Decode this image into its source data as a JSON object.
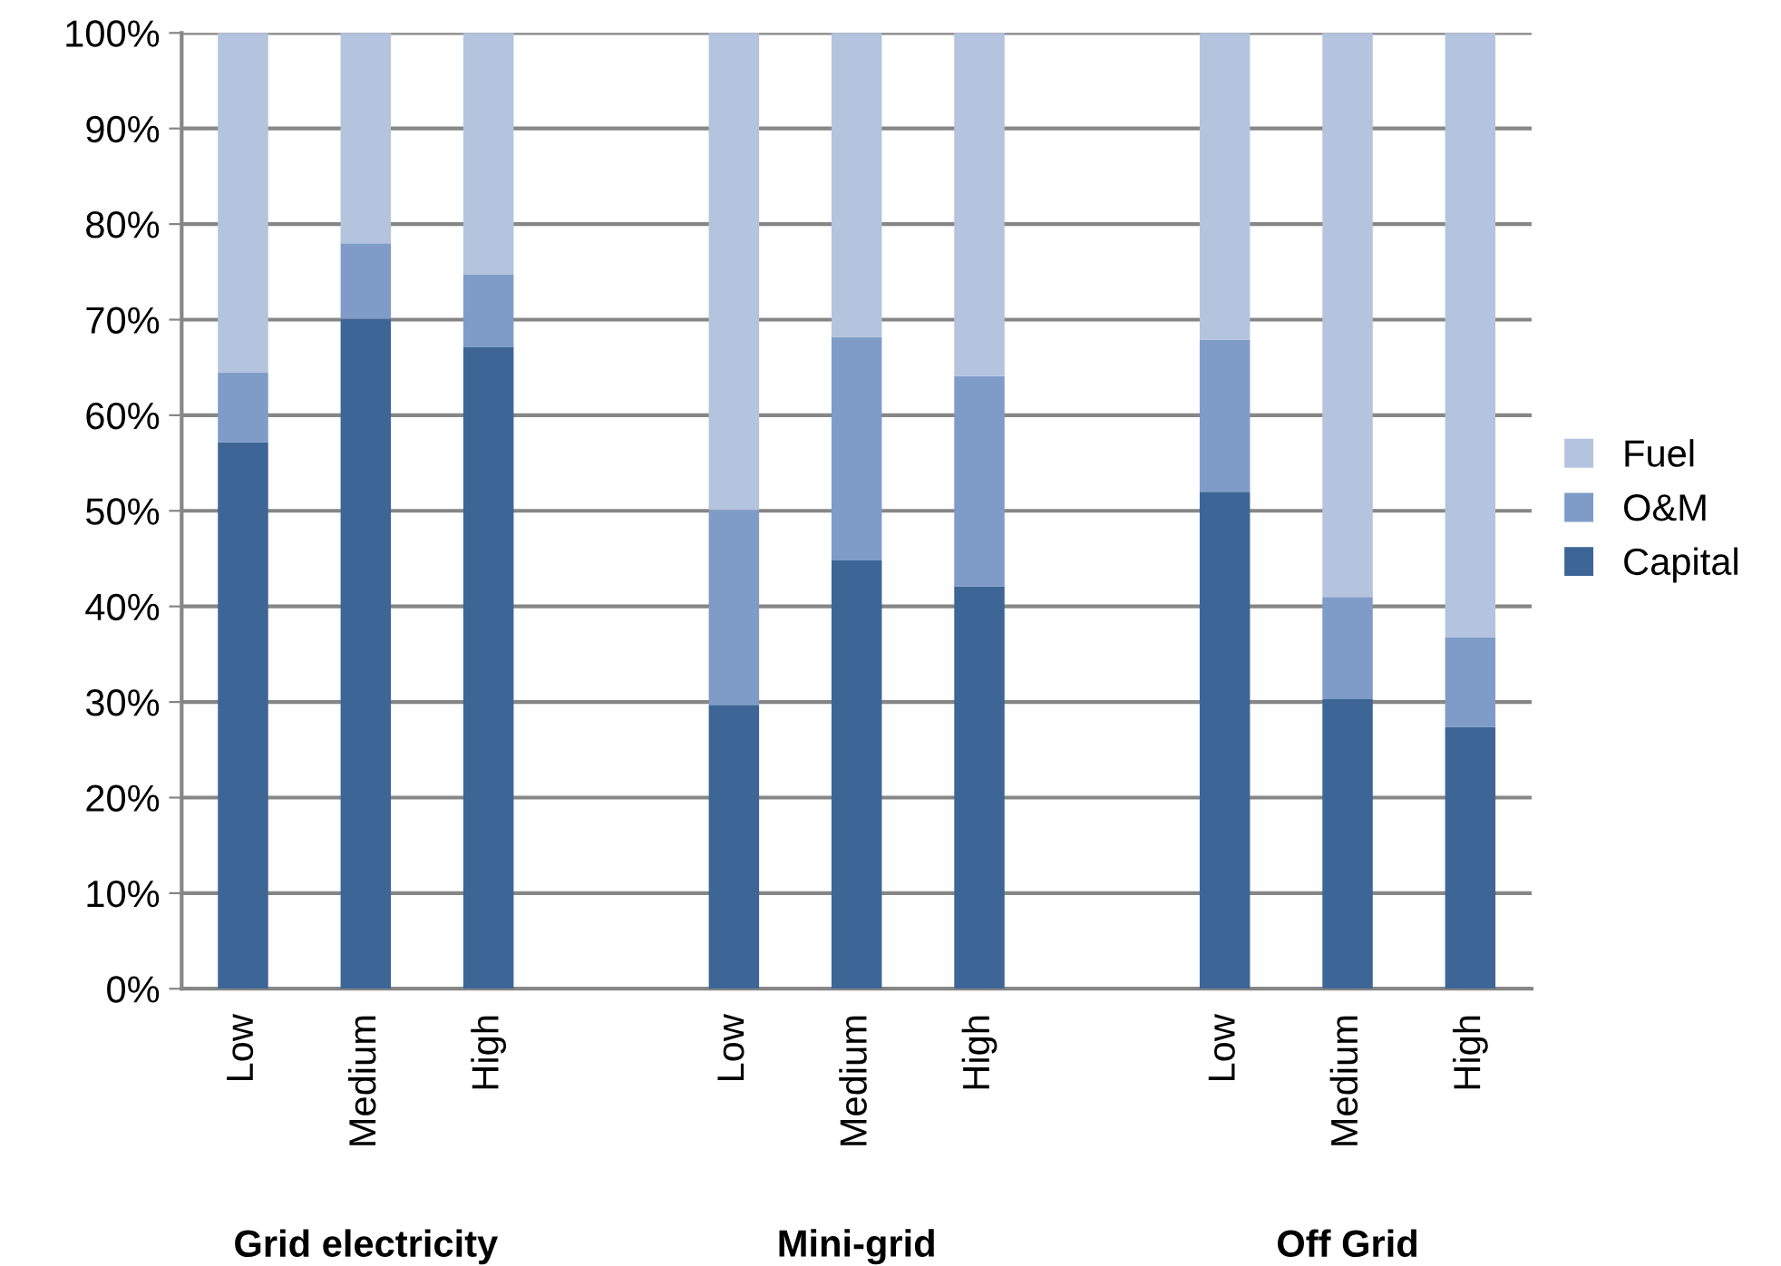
{
  "chart_data": {
    "type": "bar",
    "stacked": true,
    "categories": [
      "Low",
      "Medium",
      "High",
      null,
      "Low",
      "Medium",
      "High",
      null,
      "Low",
      "Medium",
      "High"
    ],
    "series": [
      {
        "name": "Capital",
        "color": "#3d6696",
        "values": [
          57.2,
          70.1,
          67.1,
          null,
          29.7,
          44.8,
          42.1,
          null,
          52.0,
          30.3,
          27.4
        ]
      },
      {
        "name": "O&M",
        "color": "#7f9cc8",
        "values": [
          7.3,
          7.9,
          7.6,
          null,
          20.4,
          23.4,
          22.0,
          null,
          15.9,
          10.7,
          9.4
        ]
      },
      {
        "name": "Fuel",
        "color": "#b4c3de",
        "values": [
          35.5,
          22.0,
          25.3,
          null,
          49.9,
          31.8,
          35.9,
          null,
          32.1,
          59.0,
          63.2
        ]
      }
    ],
    "ylim": [
      0,
      100
    ],
    "yticks": [
      {
        "value": 0,
        "label": "0%"
      },
      {
        "value": 10,
        "label": "10%"
      },
      {
        "value": 20,
        "label": "20%"
      },
      {
        "value": 30,
        "label": "30%"
      },
      {
        "value": 40,
        "label": "40%"
      },
      {
        "value": 50,
        "label": "50%"
      },
      {
        "value": 60,
        "label": "60%"
      },
      {
        "value": 70,
        "label": "70%"
      },
      {
        "value": 80,
        "label": "80%"
      },
      {
        "value": 90,
        "label": "90%"
      },
      {
        "value": 100,
        "label": "100%"
      }
    ],
    "grid": "y",
    "legend": "right",
    "annotations": [
      "Grid electricity",
      "Mini-grid",
      "Off Grid"
    ]
  }
}
